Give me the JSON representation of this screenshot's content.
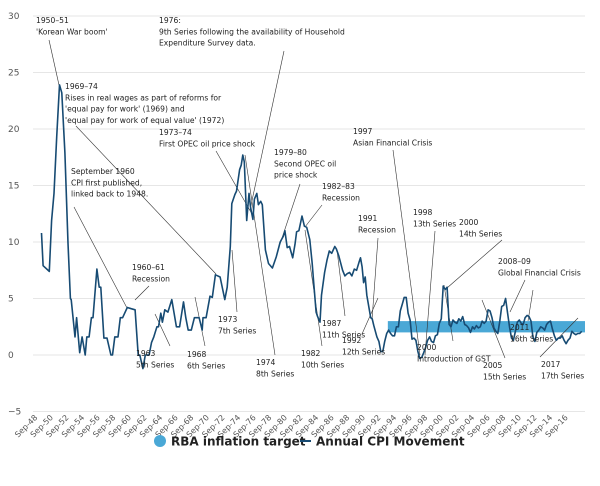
{
  "chart_data": {
    "type": "line",
    "title": "",
    "xlabel": "",
    "ylabel": "",
    "ylim": [
      -5,
      30
    ],
    "yticks": [
      30,
      25,
      20,
      15,
      10,
      5,
      0,
      -5
    ],
    "xlim": [
      1948.75,
      2019
    ],
    "xtick_labels": [
      "Sep-48",
      "Sep-50",
      "Sep-52",
      "Sep-54",
      "Sep-56",
      "Sep-58",
      "Sep-60",
      "Sep-62",
      "Sep-64",
      "Sep-66",
      "Sep-68",
      "Sep-70",
      "Sep-72",
      "Sep-74",
      "Sep-76",
      "Sep-78",
      "Sep-80",
      "Sep-82",
      "Sep-84",
      "Sep-86",
      "Sep-88",
      "Sep-90",
      "Sep-92",
      "Sep-94",
      "Sep-96",
      "Sep-98",
      "Sep-00",
      "Sep-02",
      "Sep-04",
      "Sep-06",
      "Sep-08",
      "Sep-10",
      "Sep-12",
      "Sep-14",
      "Sep-16"
    ],
    "grid": true,
    "legend_placement": "bottom",
    "colors": {
      "cpi": "#174b73",
      "target": "#4aa8d6"
    },
    "target_band": {
      "name": "RBA inflation target",
      "from_year": 1993.6,
      "low": 2,
      "high": 3
    },
    "series": [
      {
        "name": "Annual CPI Movement",
        "points": [
          [
            1949.2,
            10.8
          ],
          [
            1949.4,
            7.9
          ],
          [
            1950.2,
            7.4
          ],
          [
            1950.5,
            11.9
          ],
          [
            1950.8,
            14.3
          ],
          [
            1951.15,
            19.3
          ],
          [
            1951.5,
            23.9
          ],
          [
            1951.8,
            23.2
          ],
          [
            1952.2,
            17.9
          ],
          [
            1952.6,
            9.9
          ],
          [
            1952.9,
            5.0
          ],
          [
            1953.0,
            4.9
          ],
          [
            1953.5,
            1.6
          ],
          [
            1953.7,
            3.3
          ],
          [
            1954.1,
            0.2
          ],
          [
            1954.4,
            1.6
          ],
          [
            1954.8,
            0
          ],
          [
            1955.0,
            1.6
          ],
          [
            1955.3,
            1.6
          ],
          [
            1955.6,
            3.3
          ],
          [
            1955.8,
            3.3
          ],
          [
            1956.3,
            7.6
          ],
          [
            1956.6,
            6.0
          ],
          [
            1956.8,
            6.0
          ],
          [
            1957.2,
            1.5
          ],
          [
            1957.6,
            1.5
          ],
          [
            1958.1,
            0
          ],
          [
            1958.3,
            0
          ],
          [
            1958.6,
            1.6
          ],
          [
            1959.0,
            1.6
          ],
          [
            1959.3,
            3.3
          ],
          [
            1959.6,
            3.3
          ],
          [
            1960.2,
            4.2
          ],
          [
            1960.7,
            4.1
          ],
          [
            1961.2,
            4.0
          ],
          [
            1961.6,
            0
          ],
          [
            1961.8,
            0
          ],
          [
            1962.2,
            -1.2
          ],
          [
            1962.5,
            0
          ],
          [
            1963.0,
            0
          ],
          [
            1963.3,
            1.1
          ],
          [
            1963.6,
            1.6
          ],
          [
            1964.0,
            2.5
          ],
          [
            1964.2,
            2.5
          ],
          [
            1964.5,
            3.7
          ],
          [
            1964.7,
            2.9
          ],
          [
            1965.0,
            4.0
          ],
          [
            1965.4,
            3.8
          ],
          [
            1965.9,
            4.9
          ],
          [
            1966.2,
            3.7
          ],
          [
            1966.5,
            2.5
          ],
          [
            1966.9,
            2.5
          ],
          [
            1967.4,
            4.7
          ],
          [
            1967.7,
            3.3
          ],
          [
            1968.0,
            2.2
          ],
          [
            1968.4,
            2.2
          ],
          [
            1968.8,
            3.3
          ],
          [
            1969.4,
            3.3
          ],
          [
            1969.8,
            2.2
          ],
          [
            1969.9,
            3.3
          ],
          [
            1970.3,
            3.3
          ],
          [
            1970.8,
            5.2
          ],
          [
            1971.1,
            5.1
          ],
          [
            1971.5,
            7.1
          ],
          [
            1972.1,
            6.9
          ],
          [
            1972.7,
            4.9
          ],
          [
            1973.0,
            6.0
          ],
          [
            1973.4,
            9.6
          ],
          [
            1973.6,
            13.4
          ],
          [
            1974.0,
            14.2
          ],
          [
            1974.2,
            14.5
          ],
          [
            1974.6,
            16.4
          ],
          [
            1974.8,
            16.8
          ],
          [
            1975.0,
            17.7
          ],
          [
            1975.2,
            17.1
          ],
          [
            1975.5,
            11.9
          ],
          [
            1975.8,
            14.3
          ],
          [
            1976.0,
            13.1
          ],
          [
            1976.3,
            12.0
          ],
          [
            1976.5,
            13.8
          ],
          [
            1976.8,
            14.3
          ],
          [
            1977.0,
            13.3
          ],
          [
            1977.3,
            13.6
          ],
          [
            1977.5,
            13.3
          ],
          [
            1977.9,
            9.3
          ],
          [
            1978.3,
            8.1
          ],
          [
            1978.8,
            7.7
          ],
          [
            1979.3,
            8.7
          ],
          [
            1979.8,
            10.0
          ],
          [
            1980.2,
            10.5
          ],
          [
            1980.4,
            11.0
          ],
          [
            1980.7,
            9.5
          ],
          [
            1981.0,
            9.6
          ],
          [
            1981.4,
            8.6
          ],
          [
            1981.7,
            9.8
          ],
          [
            1981.9,
            10.9
          ],
          [
            1982.2,
            11.0
          ],
          [
            1982.6,
            12.3
          ],
          [
            1982.9,
            11.4
          ],
          [
            1983.2,
            11.3
          ],
          [
            1983.6,
            10.2
          ],
          [
            1983.9,
            8.1
          ],
          [
            1984.1,
            6.4
          ],
          [
            1984.4,
            3.8
          ],
          [
            1984.6,
            3.4
          ],
          [
            1984.9,
            2.9
          ],
          [
            1985.1,
            5.3
          ],
          [
            1985.5,
            7.3
          ],
          [
            1985.8,
            8.4
          ],
          [
            1986.1,
            9.2
          ],
          [
            1986.4,
            9.0
          ],
          [
            1986.8,
            9.6
          ],
          [
            1987.0,
            9.4
          ],
          [
            1987.3,
            8.8
          ],
          [
            1987.8,
            7.5
          ],
          [
            1988.1,
            7.0
          ],
          [
            1988.4,
            7.2
          ],
          [
            1988.7,
            7.3
          ],
          [
            1989.0,
            7.0
          ],
          [
            1989.3,
            7.6
          ],
          [
            1989.6,
            7.5
          ],
          [
            1989.9,
            8.2
          ],
          [
            1990.1,
            8.6
          ],
          [
            1990.3,
            7.8
          ],
          [
            1990.5,
            6.4
          ],
          [
            1990.7,
            6.9
          ],
          [
            1990.9,
            5.3
          ],
          [
            1991.4,
            3.3
          ],
          [
            1991.6,
            3.2
          ],
          [
            1991.8,
            2.6
          ],
          [
            1992.2,
            1.6
          ],
          [
            1992.45,
            1.2
          ],
          [
            1992.7,
            0.3
          ],
          [
            1992.95,
            0.3
          ],
          [
            1993.2,
            1.2
          ],
          [
            1993.45,
            1.9
          ],
          [
            1993.7,
            2.2
          ],
          [
            1993.95,
            1.9
          ],
          [
            1994.2,
            1.7
          ],
          [
            1994.45,
            1.7
          ],
          [
            1994.7,
            2.5
          ],
          [
            1994.95,
            2.5
          ],
          [
            1995.2,
            3.9
          ],
          [
            1995.45,
            4.5
          ],
          [
            1995.7,
            5.1
          ],
          [
            1995.95,
            5.1
          ],
          [
            1996.2,
            3.7
          ],
          [
            1996.45,
            3.1
          ],
          [
            1996.7,
            1.4
          ],
          [
            1996.95,
            1.5
          ],
          [
            1997.2,
            1.3
          ],
          [
            1997.45,
            0.3
          ],
          [
            1997.7,
            -0.3
          ],
          [
            1997.95,
            -0.2
          ],
          [
            1998.2,
            0.2
          ],
          [
            1998.45,
            0.7
          ],
          [
            1998.7,
            1.3
          ],
          [
            1998.95,
            1.6
          ],
          [
            1999.2,
            1.2
          ],
          [
            1999.45,
            1.1
          ],
          [
            1999.7,
            1.7
          ],
          [
            1999.95,
            1.8
          ],
          [
            2000.2,
            2.8
          ],
          [
            2000.45,
            3.2
          ],
          [
            2000.7,
            6.1
          ],
          [
            2000.95,
            5.8
          ],
          [
            2001.2,
            6.0
          ],
          [
            2001.45,
            2.7
          ],
          [
            2001.7,
            2.5
          ],
          [
            2001.95,
            3.1
          ],
          [
            2002.2,
            2.9
          ],
          [
            2002.45,
            2.8
          ],
          [
            2002.7,
            3.2
          ],
          [
            2002.95,
            3.0
          ],
          [
            2003.2,
            3.4
          ],
          [
            2003.45,
            2.7
          ],
          [
            2003.7,
            2.6
          ],
          [
            2003.95,
            2.4
          ],
          [
            2004.2,
            2.0
          ],
          [
            2004.45,
            2.5
          ],
          [
            2004.7,
            2.3
          ],
          [
            2004.95,
            2.6
          ],
          [
            2005.2,
            2.4
          ],
          [
            2005.45,
            2.5
          ],
          [
            2005.7,
            3.0
          ],
          [
            2005.95,
            2.8
          ],
          [
            2006.2,
            3.0
          ],
          [
            2006.45,
            4.0
          ],
          [
            2006.7,
            3.9
          ],
          [
            2006.95,
            3.3
          ],
          [
            2007.2,
            2.4
          ],
          [
            2007.45,
            2.1
          ],
          [
            2007.7,
            1.9
          ],
          [
            2007.95,
            3.0
          ],
          [
            2008.2,
            4.3
          ],
          [
            2008.45,
            4.4
          ],
          [
            2008.7,
            5.0
          ],
          [
            2008.95,
            3.7
          ],
          [
            2009.2,
            2.5
          ],
          [
            2009.45,
            1.5
          ],
          [
            2009.7,
            1.3
          ],
          [
            2009.95,
            2.1
          ],
          [
            2010.2,
            2.9
          ],
          [
            2010.45,
            3.1
          ],
          [
            2010.7,
            2.8
          ],
          [
            2010.95,
            2.7
          ],
          [
            2011.2,
            3.3
          ],
          [
            2011.45,
            3.5
          ],
          [
            2011.7,
            3.4
          ],
          [
            2011.95,
            3.0
          ],
          [
            2012.2,
            1.6
          ],
          [
            2012.45,
            1.2
          ],
          [
            2012.7,
            2.0
          ],
          [
            2012.95,
            2.2
          ],
          [
            2013.2,
            2.5
          ],
          [
            2013.45,
            2.4
          ],
          [
            2013.7,
            2.2
          ],
          [
            2013.95,
            2.7
          ],
          [
            2014.2,
            2.9
          ],
          [
            2014.45,
            3.0
          ],
          [
            2014.7,
            2.3
          ],
          [
            2014.95,
            1.7
          ],
          [
            2015.2,
            1.3
          ],
          [
            2015.45,
            1.5
          ],
          [
            2015.7,
            1.5
          ],
          [
            2015.95,
            1.7
          ],
          [
            2016.2,
            1.3
          ],
          [
            2016.45,
            1.0
          ],
          [
            2016.7,
            1.3
          ],
          [
            2016.95,
            1.5
          ],
          [
            2017.2,
            2.1
          ],
          [
            2017.45,
            1.9
          ],
          [
            2017.7,
            1.8
          ],
          [
            2017.95,
            1.9
          ],
          [
            2018.2,
            1.9
          ],
          [
            2018.45,
            2.1
          ]
        ]
      }
    ],
    "annotations": [
      [
        "1950–51",
        "'Korean War boom'"
      ],
      [
        "1969–74",
        "Rises in real wages as part of reforms for",
        "'equal pay for work' (1969) and",
        "'equal pay for work of equal value' (1972)"
      ],
      [
        "1976:",
        "9th Series following the availability of Household",
        "Expenditure Survey data."
      ],
      [
        "1973–74",
        "First OPEC oil price shock"
      ],
      [
        "1979–80",
        "Second OPEC oil",
        "price shock"
      ],
      [
        "1982–83",
        "Recession"
      ],
      [
        "1991",
        "Recession"
      ],
      [
        "1997",
        "Asian Financial Crisis"
      ],
      [
        "1998",
        "13th Series"
      ],
      [
        "2000",
        "14th Series"
      ],
      [
        "2008–09",
        "Global Financial Crisis"
      ],
      [
        "September 1960",
        "CPI first published,",
        "linked back to 1948."
      ],
      [
        "1960–61",
        "Recession"
      ],
      [
        "1963",
        "5th Series"
      ],
      [
        "1968",
        "6th Series"
      ],
      [
        "1973",
        "7th Series"
      ],
      [
        "1974",
        "8th Series"
      ],
      [
        "1982",
        "10th Series"
      ],
      [
        "1987",
        "11th Series"
      ],
      [
        "1992",
        "12th Series"
      ],
      [
        "2000",
        "Introduction of GST"
      ],
      [
        "2005",
        "15th Series"
      ],
      [
        "2011",
        "16th Series"
      ],
      [
        "2017",
        "17th Series"
      ]
    ]
  },
  "legend": {
    "target_label": "RBA inflation target",
    "cpi_label": "Annual CPI Movement"
  }
}
